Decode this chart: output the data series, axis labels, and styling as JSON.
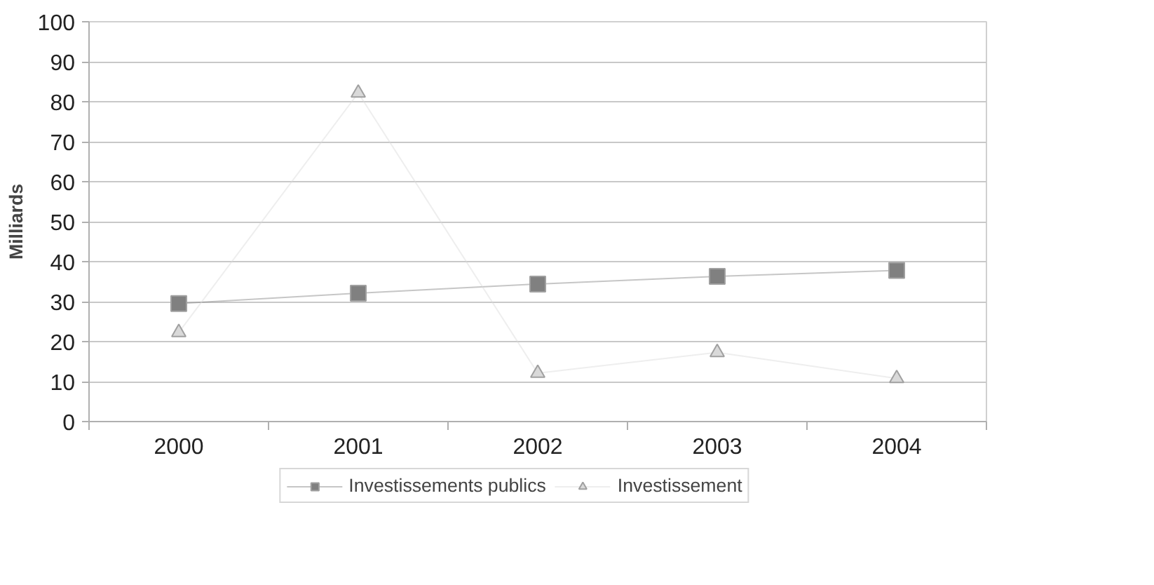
{
  "chart_data": {
    "type": "line",
    "ylabel": "Milliards",
    "categories": [
      "2000",
      "2001",
      "2002",
      "2003",
      "2004"
    ],
    "series": [
      {
        "name": "Investissements publics",
        "color": "#808080",
        "marker": "square",
        "values": [
          29.5,
          32.1,
          34.4,
          36.3,
          37.8
        ]
      },
      {
        "name": "Investissement",
        "color": "#d9d9d9",
        "marker": "triangle",
        "values": [
          22.3,
          82.2,
          12.1,
          17.3,
          10.8
        ]
      }
    ],
    "ylim": [
      0,
      100
    ],
    "yticks": [
      0,
      10,
      20,
      30,
      40,
      50,
      60,
      70,
      80,
      90,
      100
    ],
    "grid": "y",
    "legend": "bottom",
    "line_style": "solid"
  }
}
